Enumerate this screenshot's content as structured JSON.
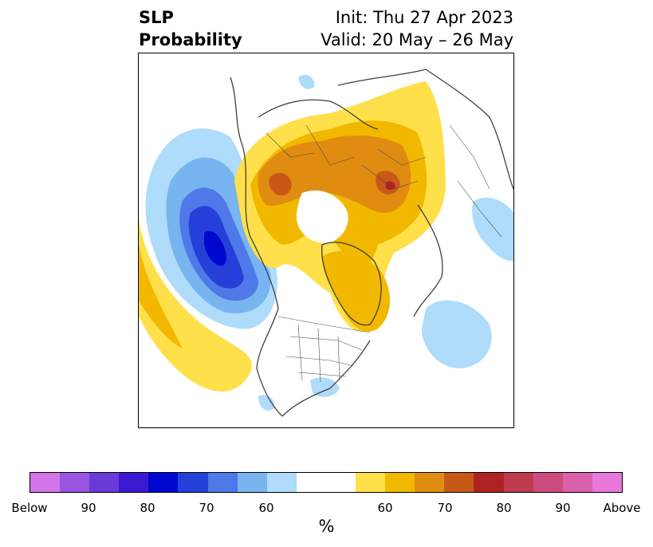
{
  "header": {
    "title_line1": "SLP",
    "title_line2": "Probability",
    "init": "Init: Thu 27 Apr 2023",
    "valid": "Valid: 20 May – 26 May"
  },
  "map": {
    "projection": "north-polar stereographic",
    "below_anomaly_color": "#2a3fd9",
    "above_anomaly_color": "#e08c10"
  },
  "colorbar": {
    "colors": [
      "#d474e8",
      "#9a55e0",
      "#6a3ad8",
      "#3a1ad0",
      "#0008d0",
      "#2440d8",
      "#4f78e8",
      "#78b4f0",
      "#aedcfa",
      "#ffffff",
      "#ffe04a",
      "#f2b800",
      "#e08c10",
      "#c85818",
      "#b02222",
      "#c03a50",
      "#cc4c80",
      "#da60ac",
      "#e878da"
    ],
    "tick_labels": [
      "Below",
      "90",
      "80",
      "70",
      "60",
      "60",
      "70",
      "80",
      "90",
      "Above"
    ],
    "unit": "%"
  }
}
